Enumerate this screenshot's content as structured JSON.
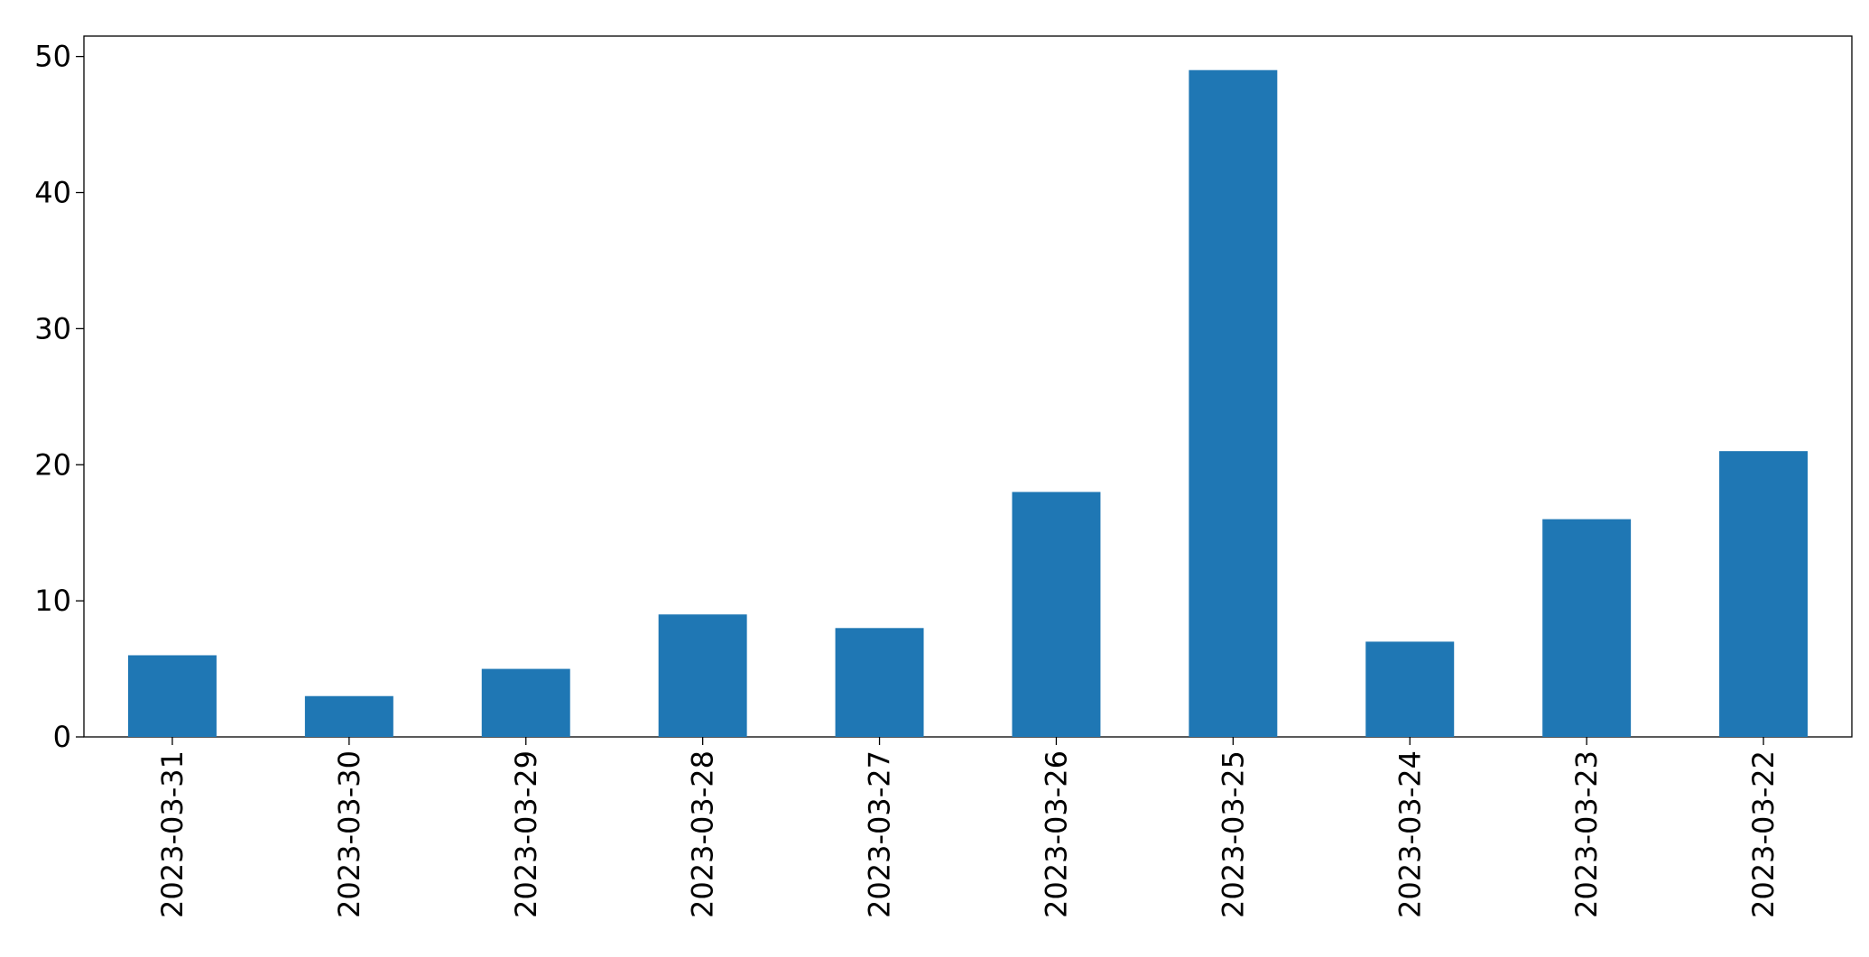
{
  "chart_data": {
    "type": "bar",
    "categories": [
      "2023-03-31",
      "2023-03-30",
      "2023-03-29",
      "2023-03-28",
      "2023-03-27",
      "2023-03-26",
      "2023-03-25",
      "2023-03-24",
      "2023-03-23",
      "2023-03-22"
    ],
    "values": [
      6,
      3,
      5,
      9,
      8,
      18,
      49,
      7,
      16,
      21
    ],
    "color": "#1f77b4",
    "ylim": [
      0,
      51.5
    ],
    "yticks": [
      0,
      10,
      20,
      30,
      40,
      50
    ],
    "grid": false
  }
}
